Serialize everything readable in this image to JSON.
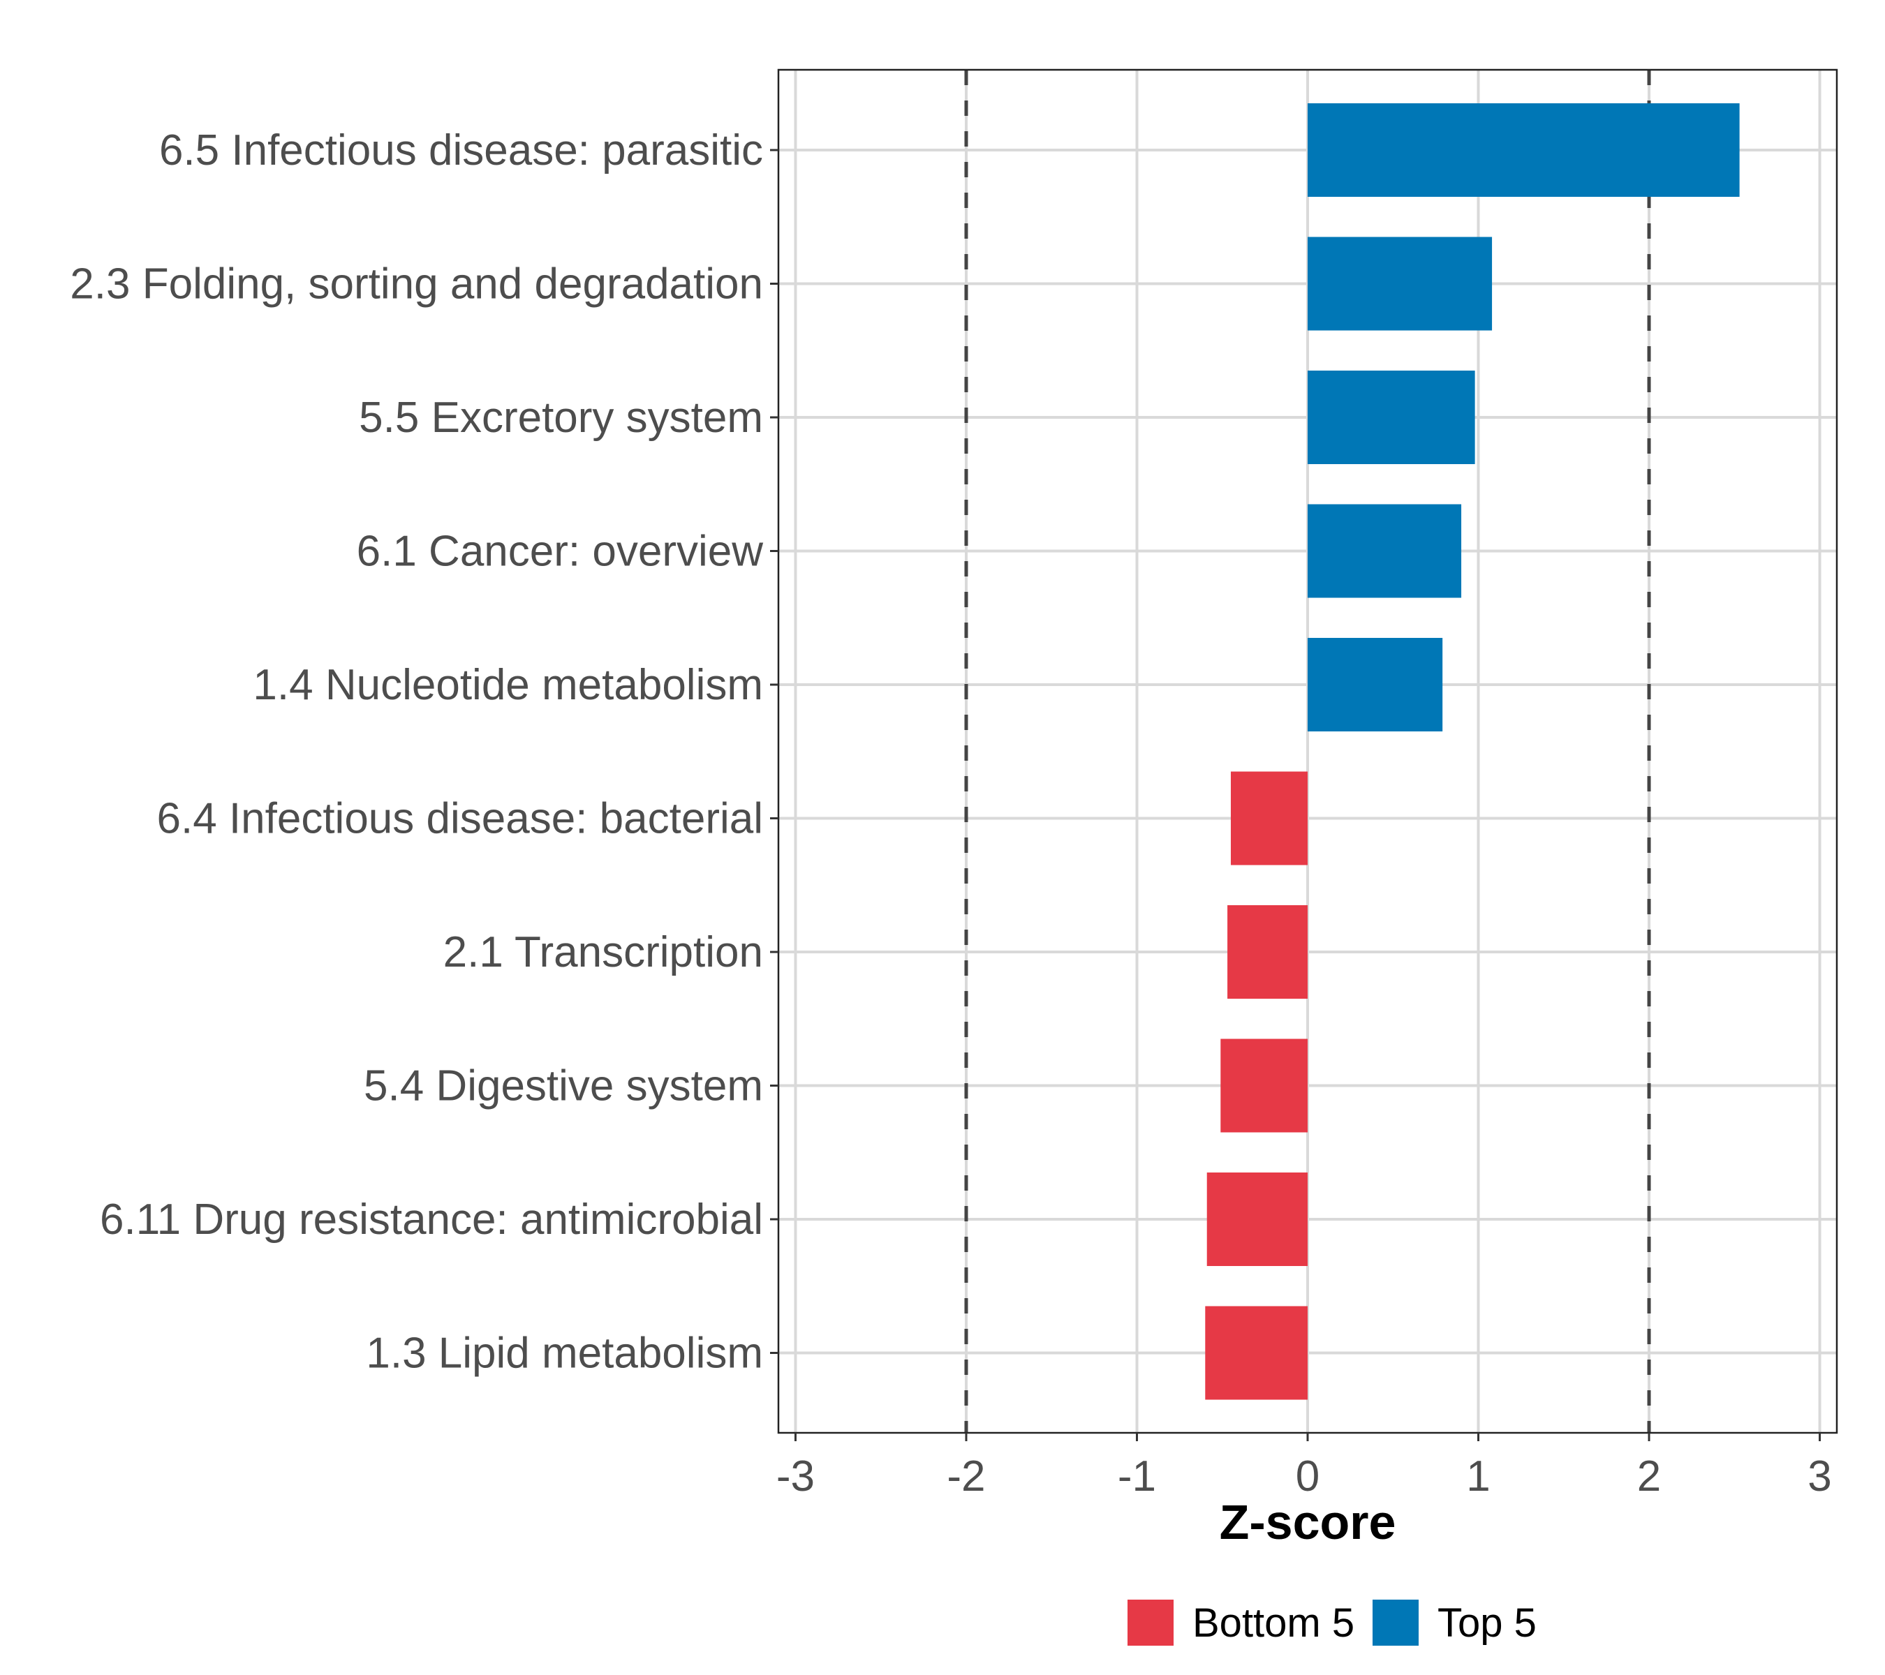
{
  "chart_data": {
    "type": "bar",
    "orientation": "horizontal",
    "title": "",
    "xlabel": "Z-score",
    "ylabel": "",
    "xlim": [
      -3,
      3
    ],
    "xticks": [
      -3,
      -2,
      -1,
      0,
      1,
      2,
      3
    ],
    "xtick_labels": [
      "-3",
      "-2",
      "-1",
      "0",
      "1",
      "2",
      "3"
    ],
    "grid": true,
    "reference_lines": [
      -2,
      2
    ],
    "legend_position": "bottom",
    "categories": [
      "6.5 Infectious disease: parasitic",
      "2.3 Folding, sorting and degradation",
      "5.5 Excretory system",
      "6.1 Cancer: overview",
      "1.4 Nucleotide metabolism",
      "6.4 Infectious disease: bacterial",
      "2.1 Transcription",
      "5.4 Digestive system",
      "6.11 Drug resistance: antimicrobial",
      "1.3 Lipid metabolism"
    ],
    "values": [
      2.53,
      1.08,
      0.98,
      0.9,
      0.79,
      -0.45,
      -0.47,
      -0.51,
      -0.59,
      -0.6
    ],
    "groups": [
      "Top 5",
      "Top 5",
      "Top 5",
      "Top 5",
      "Top 5",
      "Bottom 5",
      "Bottom 5",
      "Bottom 5",
      "Bottom 5",
      "Bottom 5"
    ],
    "legend": [
      {
        "name": "Bottom 5",
        "color": "#e63946"
      },
      {
        "name": "Top 5",
        "color": "#0077b6"
      }
    ]
  }
}
